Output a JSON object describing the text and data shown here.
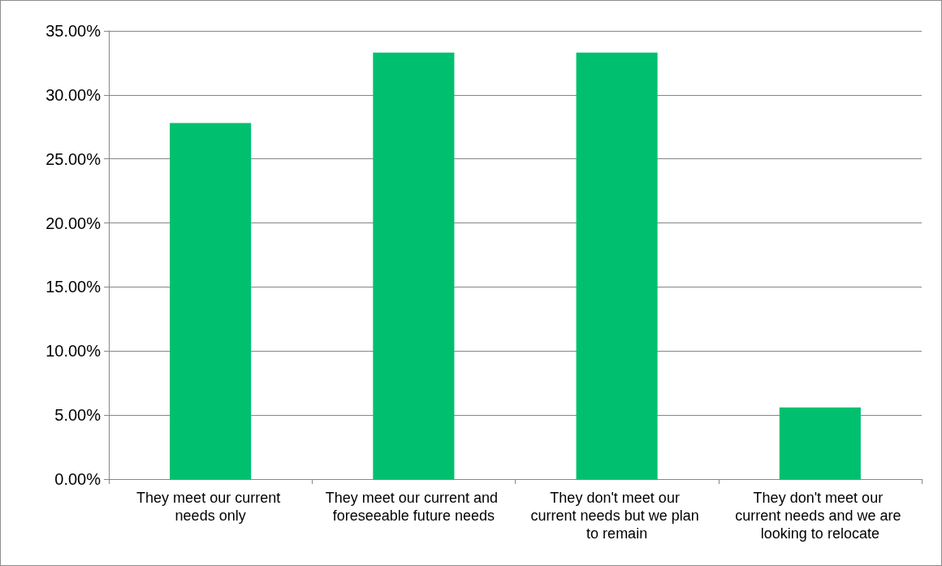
{
  "chart_data": {
    "type": "bar",
    "categories": [
      "They meet our current needs only",
      "They meet our current and foreseeable future needs",
      "They don't meet our current needs but we plan to remain",
      "They don't meet our current needs and we are looking to relocate"
    ],
    "values": [
      27.8,
      33.3,
      33.3,
      5.6
    ],
    "color": "#00c06f",
    "ylim": [
      0,
      35
    ],
    "yticks": [
      {
        "value": 0,
        "label": "0.00%"
      },
      {
        "value": 5,
        "label": "5.00%"
      },
      {
        "value": 10,
        "label": "10.00%"
      },
      {
        "value": 15,
        "label": "15.00%"
      },
      {
        "value": 20,
        "label": "20.00%"
      },
      {
        "value": 25,
        "label": "25.00%"
      },
      {
        "value": 30,
        "label": "30.00%"
      },
      {
        "value": 35,
        "label": "35.00%"
      }
    ],
    "grid": "y"
  }
}
